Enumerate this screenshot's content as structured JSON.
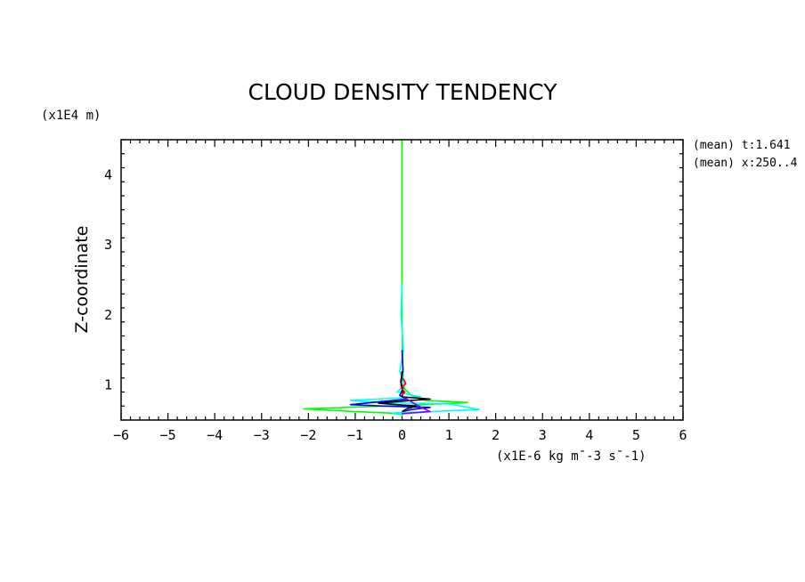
{
  "chart_data": {
    "type": "line",
    "title": "CLOUD DENSITY TENDENCY",
    "xlabel": "(x1E-6 kg m¯-3 s¯-1)",
    "ylabel": "Z-coordinate",
    "yunits": "(x1E4 m)",
    "xlim": [
      -6,
      6
    ],
    "ylim": [
      0.5,
      4.5
    ],
    "x_ticks": [
      -6,
      -5,
      -4,
      -3,
      -2,
      -1,
      0,
      1,
      2,
      3,
      4,
      5,
      6
    ],
    "y_ticks": [
      1,
      2,
      3,
      4
    ],
    "grid": false,
    "annotations": [
      "(mean) t:1.641",
      "(mean) x:250..4"
    ],
    "series": [
      {
        "color": "#00ff00",
        "points": [
          [
            0,
            4.5
          ],
          [
            0,
            3.0
          ],
          [
            0,
            2.0
          ],
          [
            0.01,
            1.4
          ],
          [
            0.02,
            1.1
          ],
          [
            0.05,
            0.95
          ],
          [
            0.2,
            0.85
          ],
          [
            0.5,
            0.78
          ],
          [
            1.4,
            0.75
          ],
          [
            0.5,
            0.72
          ],
          [
            -2.1,
            0.66
          ],
          [
            -1.0,
            0.62
          ],
          [
            -0.3,
            0.6
          ],
          [
            0,
            0.58
          ],
          [
            0,
            0.55
          ]
        ]
      },
      {
        "color": "#00ffff",
        "points": [
          [
            0,
            2.45
          ],
          [
            -0.02,
            2.0
          ],
          [
            0.03,
            1.5
          ],
          [
            -0.05,
            1.2
          ],
          [
            0.05,
            1.0
          ],
          [
            -0.1,
            0.9
          ],
          [
            0.4,
            0.83
          ],
          [
            -1.1,
            0.78
          ],
          [
            -0.5,
            0.75
          ],
          [
            1.0,
            0.73
          ],
          [
            1.65,
            0.65
          ],
          [
            0.6,
            0.62
          ],
          [
            -0.2,
            0.6
          ],
          [
            0,
            0.58
          ]
        ]
      },
      {
        "color": "#0000ff",
        "points": [
          [
            0,
            1.5
          ],
          [
            0.02,
            1.2
          ],
          [
            -0.03,
            1.05
          ],
          [
            0.02,
            0.95
          ],
          [
            -0.05,
            0.85
          ],
          [
            0.1,
            0.8
          ],
          [
            -1.1,
            0.72
          ],
          [
            -0.4,
            0.7
          ],
          [
            0.6,
            0.68
          ],
          [
            0.2,
            0.65
          ],
          [
            0,
            0.62
          ]
        ]
      },
      {
        "color": "#000000",
        "points": [
          [
            0,
            1.2
          ],
          [
            -0.02,
            1.0
          ],
          [
            0.02,
            0.9
          ],
          [
            0,
            0.83
          ],
          [
            0.6,
            0.8
          ],
          [
            0.2,
            0.78
          ],
          [
            -0.5,
            0.74
          ],
          [
            0.3,
            0.7
          ],
          [
            0.1,
            0.66
          ],
          [
            0,
            0.62
          ]
        ]
      },
      {
        "color": "#ff0000",
        "points": [
          [
            0.02,
            1.1
          ],
          [
            0.08,
            1.02
          ],
          [
            -0.02,
            0.96
          ],
          [
            0.06,
            0.9
          ],
          [
            0,
            0.86
          ]
        ]
      },
      {
        "color": "#8800ff",
        "points": [
          [
            0.05,
            0.82
          ],
          [
            0.3,
            0.72
          ],
          [
            0.6,
            0.62
          ],
          [
            0.2,
            0.6
          ],
          [
            0,
            0.59
          ]
        ]
      }
    ]
  }
}
